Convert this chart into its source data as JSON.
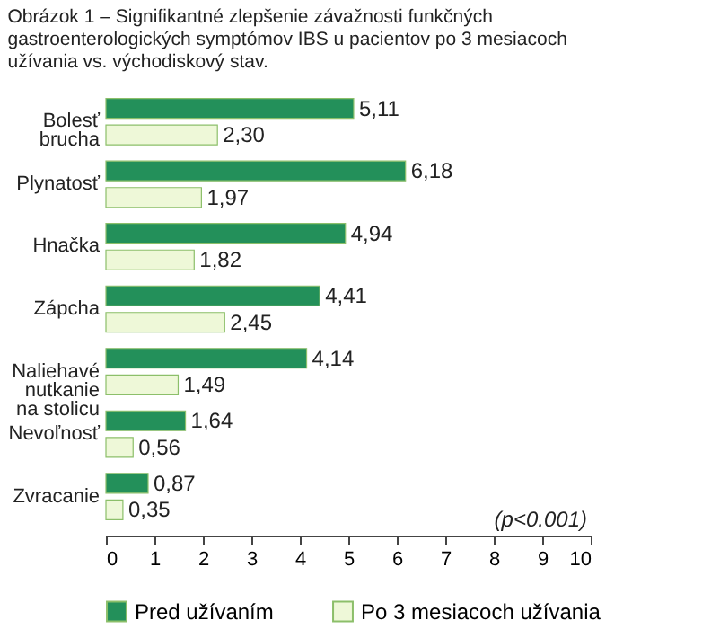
{
  "chart_data": {
    "type": "bar",
    "orientation": "horizontal",
    "title": "Obrázok 1 – Signifikantné zlepšenie závažnosti funkčných gastroenterologických symptómov IBS u pacientov po 3 mesiacoch užívania vs. východiskový stav.",
    "categories": [
      "Bolesť\nbrucha",
      "Plynatosť",
      "Hnačka",
      "Zápcha",
      "Naliehavé\nnutkanie\nna stolicu",
      "Nevoľnosť",
      "Zvracanie"
    ],
    "series": [
      {
        "name": "Pred užívaním",
        "color": "#23905a",
        "values": [
          5.11,
          6.18,
          4.94,
          4.41,
          4.14,
          1.64,
          0.87
        ],
        "value_labels": [
          "5,11",
          "6,18",
          "4,94",
          "4,41",
          "4,14",
          "1,64",
          "0,87"
        ]
      },
      {
        "name": "Po 3 mesiacoch užívania",
        "color": "#eef8d8",
        "values": [
          2.3,
          1.97,
          1.82,
          2.45,
          1.49,
          0.56,
          0.35
        ],
        "value_labels": [
          "2,30",
          "1,97",
          "1,82",
          "2,45",
          "1,49",
          "0,56",
          "0,35"
        ]
      }
    ],
    "xlim": [
      0,
      10
    ],
    "xticks": [
      0,
      1,
      2,
      3,
      4,
      5,
      6,
      7,
      8,
      9,
      10
    ],
    "grid": false,
    "legend": "bottom",
    "annotations": [
      "(p<0.001)"
    ]
  }
}
